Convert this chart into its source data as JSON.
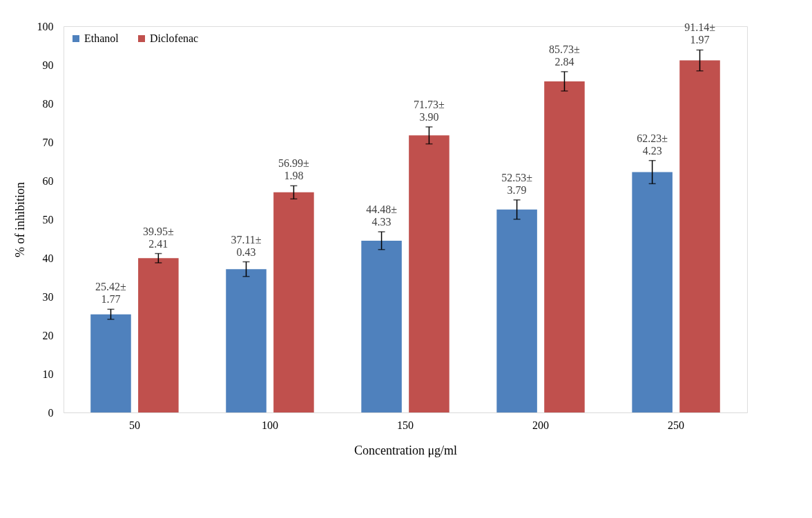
{
  "chart_data": {
    "type": "bar",
    "xlabel": "Concentration μg/ml",
    "ylabel": "% of inhibition",
    "categories": [
      "50",
      "100",
      "150",
      "200",
      "250"
    ],
    "series": [
      {
        "name": "Ethanol",
        "color": "#4f81bd",
        "values": [
          25.42,
          37.11,
          44.48,
          52.53,
          62.23
        ],
        "errors": [
          1.3,
          1.9,
          2.3,
          2.5,
          3.0
        ],
        "value_labels": [
          "25.42±\n1.77",
          "37.11±\n0.43",
          "44.48±\n4.33",
          "52.53±\n3.79",
          "62.23±\n4.23"
        ]
      },
      {
        "name": "Diclofenac",
        "color": "#c0504d",
        "values": [
          39.95,
          56.99,
          71.73,
          85.73,
          91.14
        ],
        "errors": [
          1.2,
          1.7,
          2.2,
          2.5,
          2.7
        ],
        "value_labels": [
          "39.95±\n2.41",
          "56.99±\n1.98",
          "71.73±\n3.90",
          "85.73±\n2.84",
          "91.14±\n1.97"
        ]
      }
    ],
    "ylim": [
      0,
      100
    ],
    "yticks": [
      0,
      10,
      20,
      30,
      40,
      50,
      60,
      70,
      80,
      90,
      100
    ],
    "grid": false,
    "legend": "top left"
  }
}
